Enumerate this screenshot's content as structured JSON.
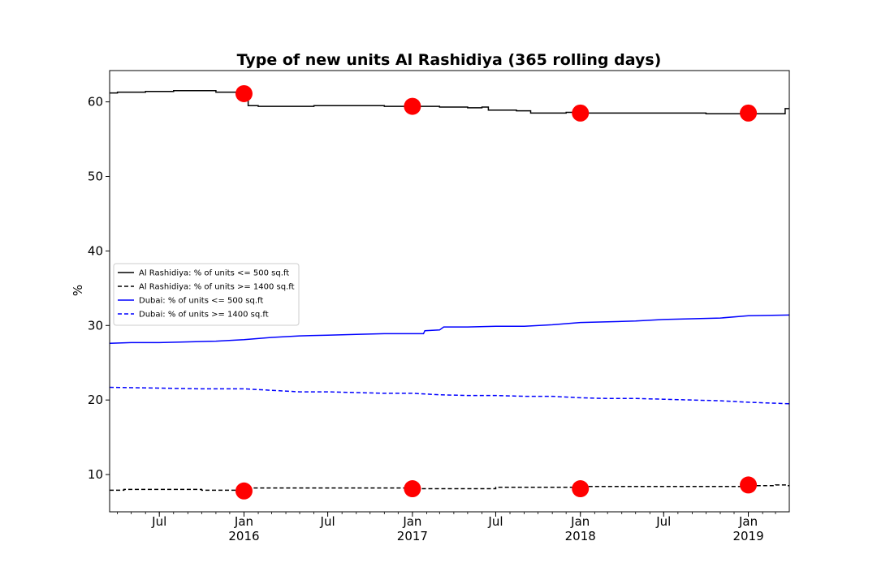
{
  "chart_data": {
    "type": "line",
    "title": "Type of new units Al Rashidiya (365 rolling days)",
    "xlabel": "",
    "ylabel": "%",
    "xlim": [
      "2015-03-15",
      "2019-03-31"
    ],
    "ylim": [
      5,
      64.2
    ],
    "yticks": [
      10,
      20,
      30,
      40,
      50,
      60
    ],
    "xticks": [
      {
        "date": "2015-07-01",
        "label": "Jul",
        "year": ""
      },
      {
        "date": "2016-01-01",
        "label": "Jan",
        "year": "2016"
      },
      {
        "date": "2016-07-01",
        "label": "Jul",
        "year": ""
      },
      {
        "date": "2017-01-01",
        "label": "Jan",
        "year": "2017"
      },
      {
        "date": "2017-07-01",
        "label": "Jul",
        "year": ""
      },
      {
        "date": "2018-01-01",
        "label": "Jan",
        "year": "2018"
      },
      {
        "date": "2018-07-01",
        "label": "Jul",
        "year": ""
      },
      {
        "date": "2019-01-01",
        "label": "Jan",
        "year": "2019"
      }
    ],
    "grid": false,
    "legend_position": "center-left",
    "series": [
      {
        "name": "Al Rashidiya: % of units <= 500 sq.ft",
        "color": "#000000",
        "dash": "solid",
        "step": true,
        "points": [
          [
            "2015-03-15",
            61.2
          ],
          [
            "2015-04-01",
            61.3
          ],
          [
            "2015-05-01",
            61.3
          ],
          [
            "2015-06-01",
            61.4
          ],
          [
            "2015-07-01",
            61.4
          ],
          [
            "2015-08-01",
            61.5
          ],
          [
            "2015-09-01",
            61.5
          ],
          [
            "2015-10-01",
            61.5
          ],
          [
            "2015-11-01",
            61.3
          ],
          [
            "2015-12-15",
            61.1
          ],
          [
            "2016-01-10",
            59.5
          ],
          [
            "2016-02-01",
            59.4
          ],
          [
            "2016-04-01",
            59.4
          ],
          [
            "2016-06-01",
            59.5
          ],
          [
            "2016-09-01",
            59.5
          ],
          [
            "2016-11-01",
            59.4
          ],
          [
            "2017-01-01",
            59.4
          ],
          [
            "2017-03-01",
            59.3
          ],
          [
            "2017-05-01",
            59.2
          ],
          [
            "2017-06-01",
            59.3
          ],
          [
            "2017-06-15",
            58.9
          ],
          [
            "2017-08-15",
            58.8
          ],
          [
            "2017-09-15",
            58.5
          ],
          [
            "2017-11-01",
            58.5
          ],
          [
            "2017-12-01",
            58.6
          ],
          [
            "2018-01-01",
            58.5
          ],
          [
            "2018-06-01",
            58.5
          ],
          [
            "2018-10-01",
            58.4
          ],
          [
            "2019-01-01",
            58.4
          ],
          [
            "2019-03-15",
            58.4
          ],
          [
            "2019-03-22",
            59.1
          ],
          [
            "2019-03-31",
            59.1
          ]
        ]
      },
      {
        "name": "Al Rashidiya: % of units >= 1400 sq.ft",
        "color": "#000000",
        "dash": "dashed",
        "step": true,
        "points": [
          [
            "2015-03-15",
            7.9
          ],
          [
            "2015-04-15",
            8.0
          ],
          [
            "2015-07-01",
            8.0
          ],
          [
            "2015-10-01",
            7.9
          ],
          [
            "2016-01-01",
            7.8
          ],
          [
            "2016-01-10",
            8.2
          ],
          [
            "2016-07-01",
            8.2
          ],
          [
            "2017-01-01",
            8.1
          ],
          [
            "2017-06-15",
            8.1
          ],
          [
            "2017-07-01",
            8.3
          ],
          [
            "2018-01-01",
            8.4
          ],
          [
            "2018-07-01",
            8.4
          ],
          [
            "2019-01-01",
            8.5
          ],
          [
            "2019-03-01",
            8.6
          ],
          [
            "2019-03-25",
            8.5
          ],
          [
            "2019-03-31",
            8.5
          ]
        ]
      },
      {
        "name": "Dubai: % of units <= 500 sq.ft",
        "color": "#0000ff",
        "dash": "solid",
        "step": false,
        "points": [
          [
            "2015-03-15",
            27.6
          ],
          [
            "2015-05-01",
            27.7
          ],
          [
            "2015-07-01",
            27.7
          ],
          [
            "2015-09-01",
            27.8
          ],
          [
            "2015-11-01",
            27.9
          ],
          [
            "2016-01-01",
            28.1
          ],
          [
            "2016-03-01",
            28.4
          ],
          [
            "2016-05-01",
            28.6
          ],
          [
            "2016-07-01",
            28.7
          ],
          [
            "2016-09-01",
            28.8
          ],
          [
            "2016-11-01",
            28.9
          ],
          [
            "2017-01-01",
            28.9
          ],
          [
            "2017-01-25",
            28.9
          ],
          [
            "2017-01-28",
            29.3
          ],
          [
            "2017-03-01",
            29.4
          ],
          [
            "2017-03-10",
            29.8
          ],
          [
            "2017-05-01",
            29.8
          ],
          [
            "2017-07-01",
            29.9
          ],
          [
            "2017-09-01",
            29.9
          ],
          [
            "2017-11-01",
            30.1
          ],
          [
            "2018-01-01",
            30.4
          ],
          [
            "2018-03-01",
            30.5
          ],
          [
            "2018-05-01",
            30.6
          ],
          [
            "2018-07-01",
            30.8
          ],
          [
            "2018-09-01",
            30.9
          ],
          [
            "2018-11-01",
            31.0
          ],
          [
            "2019-01-01",
            31.3
          ],
          [
            "2019-03-31",
            31.4
          ]
        ]
      },
      {
        "name": "Dubai: % of units >= 1400 sq.ft",
        "color": "#0000ff",
        "dash": "dashed",
        "step": false,
        "points": [
          [
            "2015-03-15",
            21.7
          ],
          [
            "2015-07-01",
            21.6
          ],
          [
            "2015-10-01",
            21.5
          ],
          [
            "2016-01-01",
            21.5
          ],
          [
            "2016-03-01",
            21.3
          ],
          [
            "2016-05-01",
            21.1
          ],
          [
            "2016-07-01",
            21.1
          ],
          [
            "2016-09-01",
            21.0
          ],
          [
            "2016-11-01",
            20.9
          ],
          [
            "2017-01-01",
            20.9
          ],
          [
            "2017-03-01",
            20.7
          ],
          [
            "2017-05-01",
            20.6
          ],
          [
            "2017-07-01",
            20.6
          ],
          [
            "2017-09-01",
            20.5
          ],
          [
            "2017-11-01",
            20.5
          ],
          [
            "2018-01-01",
            20.3
          ],
          [
            "2018-03-01",
            20.2
          ],
          [
            "2018-05-01",
            20.2
          ],
          [
            "2018-07-01",
            20.1
          ],
          [
            "2018-09-01",
            20.0
          ],
          [
            "2018-11-01",
            19.9
          ],
          [
            "2019-01-01",
            19.7
          ],
          [
            "2019-03-31",
            19.5
          ]
        ]
      }
    ],
    "markers": {
      "color": "#ff0000",
      "points": [
        [
          "2016-01-01",
          61.1
        ],
        [
          "2017-01-01",
          59.4
        ],
        [
          "2018-01-01",
          58.5
        ],
        [
          "2019-01-01",
          58.5
        ],
        [
          "2016-01-01",
          7.8
        ],
        [
          "2017-01-01",
          8.1
        ],
        [
          "2018-01-01",
          8.1
        ],
        [
          "2019-01-01",
          8.6
        ]
      ]
    }
  }
}
